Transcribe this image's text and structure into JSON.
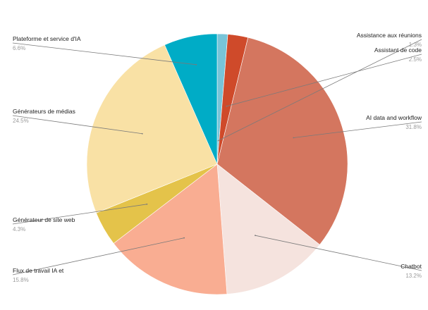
{
  "chart_data": {
    "type": "pie",
    "slices": [
      {
        "label": "Assistance aux réunions",
        "value": 1.3,
        "pct_label": "1.3%",
        "color": "#78c4d8"
      },
      {
        "label": "Assistant de code",
        "value": 2.5,
        "pct_label": "2.5%",
        "color": "#cf4a2a"
      },
      {
        "label": "AI data and workflow",
        "value": 31.8,
        "pct_label": "31.8%",
        "color": "#d4765f"
      },
      {
        "label": "Chatbot",
        "value": 13.2,
        "pct_label": "13.2%",
        "color": "#f5e3de"
      },
      {
        "label": "Flux de travail IA et",
        "value": 15.8,
        "pct_label": "15.8%",
        "color": "#f9ad92"
      },
      {
        "label": "Générateur de site web",
        "value": 4.3,
        "pct_label": "4.3%",
        "color": "#e4c34a"
      },
      {
        "label": "Générateurs de médias",
        "value": 24.5,
        "pct_label": "24.5%",
        "color": "#f9e1a5"
      },
      {
        "label": "Plateforme et service d'IA",
        "value": 6.6,
        "pct_label": "6.6%",
        "color": "#00acc6"
      }
    ]
  }
}
